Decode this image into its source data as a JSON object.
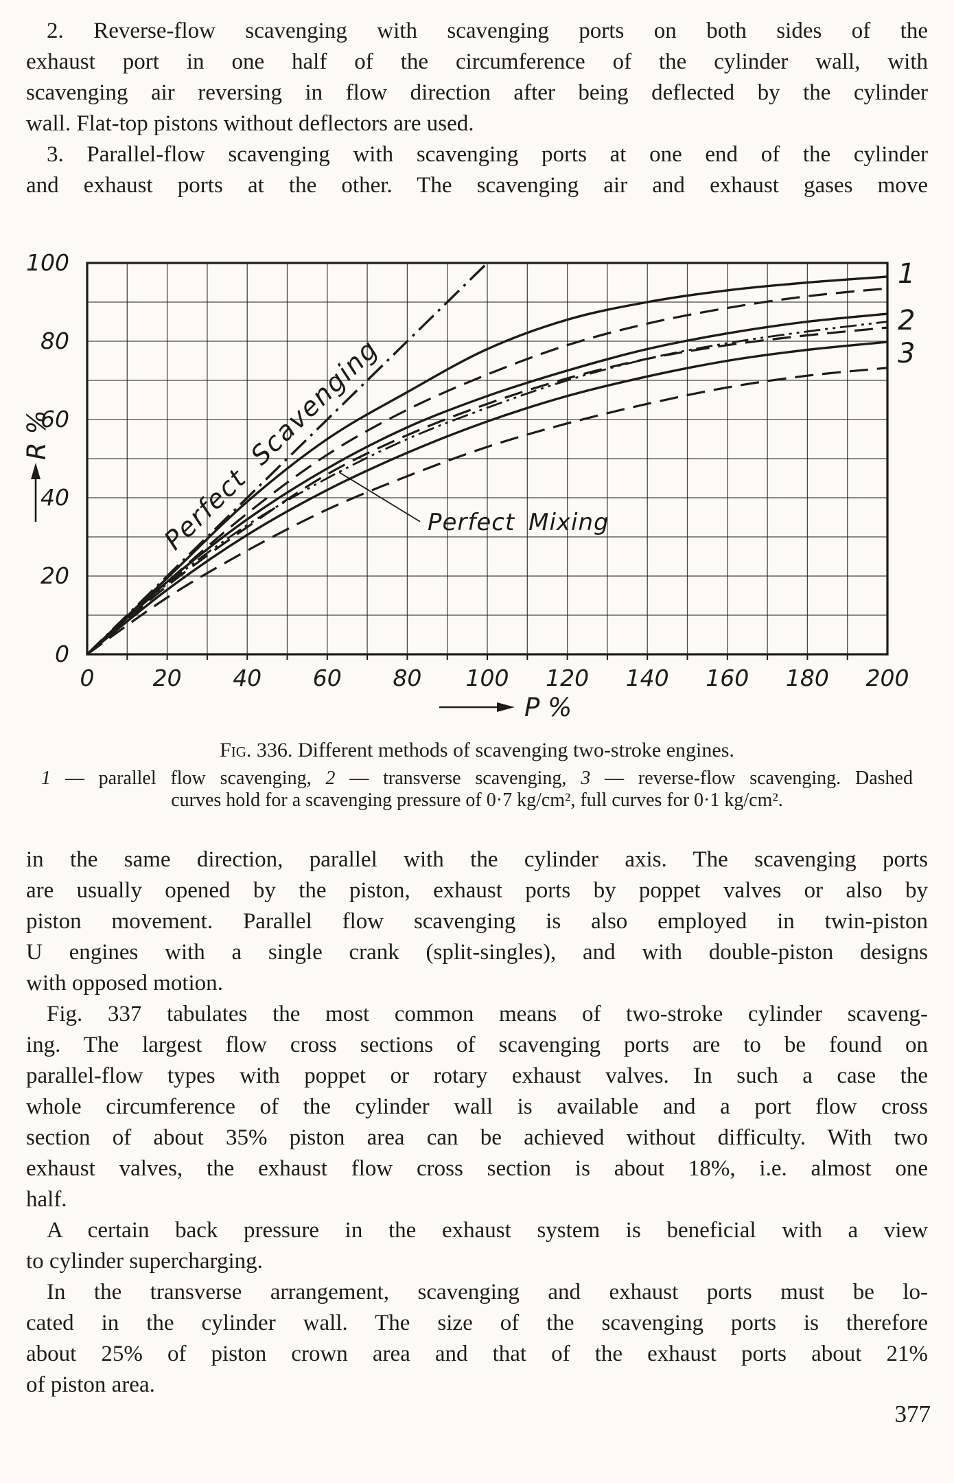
{
  "page": {
    "number": "377",
    "paper_color": "#fbfaf5",
    "ink_color": "#1f1b16"
  },
  "top_paragraphs": [
    {
      "indent": true,
      "lines": [
        "2. Reverse-flow scavenging with scavenging ports on both sides of the",
        "exhaust port in one half of the circumference of the cylinder wall, with",
        "scavenging air reversing in flow direction after being deflected by the cylinder",
        "wall. Flat-top pistons without deflectors are used."
      ],
      "justify_last": false
    },
    {
      "indent": true,
      "lines": [
        "3. Parallel-flow scavenging with scavenging ports at one end of the cylinder",
        "and exhaust ports at the other. The scavenging air and exhaust gases move"
      ],
      "justify_last": true
    }
  ],
  "caption": {
    "label": "Fig. 336.",
    "text": "Different methods of scavenging two-stroke engines."
  },
  "legend_lines": [
    [
      {
        "i": true,
        "t": "1"
      },
      {
        "t": " — parallel flow scavenging, "
      },
      {
        "i": true,
        "t": "2"
      },
      {
        "t": " — transverse scavenging, "
      },
      {
        "i": true,
        "t": "3"
      },
      {
        "t": " — reverse-flow scavenging. Dashed"
      }
    ],
    [
      {
        "t": "curves hold for a scavenging pressure of 0·7 kg/cm², full curves for 0·1 kg/cm²."
      }
    ]
  ],
  "bottom_paragraphs": [
    {
      "indent": false,
      "lines": [
        "in the same direction, parallel with the cylinder axis. The scavenging ports",
        "are usually opened by the piston, exhaust ports by poppet valves or also by",
        "piston movement. Parallel flow scavenging is also employed in twin-piston",
        "U engines with a single crank (split-singles), and with double-piston designs",
        "with opposed motion."
      ],
      "justify_last": false
    },
    {
      "indent": true,
      "lines": [
        "Fig. 337 tabulates the most common means of two-stroke cylinder scaveng-",
        "ing. The largest flow cross sections of scavenging ports are to be found on",
        "parallel-flow types with poppet or rotary exhaust valves. In such a case the",
        "whole circumference of the cylinder wall is available and a port flow cross",
        "section of about 35% piston area can be achieved without difficulty. With two",
        "exhaust valves, the exhaust flow cross section is about 18%, i.e. almost one",
        "half."
      ],
      "justify_last": false
    },
    {
      "indent": true,
      "lines": [
        "A certain back pressure in the exhaust system is beneficial with a view",
        "to cylinder supercharging."
      ],
      "justify_last": false
    },
    {
      "indent": true,
      "lines": [
        "In the transverse arrangement, scavenging and exhaust ports must be lo-",
        "cated in the cylinder wall. The size of the scavenging ports is therefore",
        "about 25% of piston crown area and that of the exhaust ports about 21%",
        "of piston area."
      ],
      "justify_last": false
    }
  ],
  "chart_data": {
    "type": "line",
    "title": "Different methods of scavenging two-stroke engines",
    "xlabel": "P %",
    "ylabel": "R %",
    "xlim": [
      0,
      200
    ],
    "ylim": [
      0,
      100
    ],
    "grid_step": 10,
    "x_ticks": [
      0,
      20,
      40,
      60,
      80,
      100,
      120,
      140,
      160,
      180,
      200
    ],
    "y_ticks": [
      0,
      20,
      40,
      60,
      80,
      100
    ],
    "series": [
      {
        "id": "perfect-scavenging",
        "name": "Perfect Scavenging",
        "style": "dashdot",
        "width": 3.4,
        "points": [
          [
            0,
            0
          ],
          [
            101,
            101
          ]
        ]
      },
      {
        "id": "perfect-mixing",
        "name": "Perfect Mixing",
        "style": "dashdotdot",
        "width": 2.8,
        "points": [
          [
            0,
            0
          ],
          [
            20,
            18
          ],
          [
            40,
            33
          ],
          [
            60,
            45
          ],
          [
            80,
            55
          ],
          [
            100,
            63
          ],
          [
            120,
            70
          ],
          [
            140,
            75.5
          ],
          [
            160,
            79.5
          ],
          [
            180,
            82.5
          ],
          [
            200,
            85
          ]
        ]
      },
      {
        "id": "curve-1-full",
        "name": "1 parallel flow scavenging, 0·1 kg/cm² (full)",
        "style": "solid",
        "width": 3.4,
        "points": [
          [
            0,
            0
          ],
          [
            20,
            19.5
          ],
          [
            40,
            39
          ],
          [
            60,
            55
          ],
          [
            80,
            67
          ],
          [
            100,
            78
          ],
          [
            120,
            85.5
          ],
          [
            140,
            90
          ],
          [
            160,
            93
          ],
          [
            180,
            95
          ],
          [
            200,
            96.5
          ]
        ]
      },
      {
        "id": "curve-1-dashed",
        "name": "1 parallel flow scavenging, 0·7 kg/cm² (dashed)",
        "style": "dashed",
        "width": 3.2,
        "points": [
          [
            0,
            0
          ],
          [
            20,
            18.5
          ],
          [
            40,
            36
          ],
          [
            60,
            51
          ],
          [
            80,
            62.5
          ],
          [
            100,
            71.5
          ],
          [
            120,
            79
          ],
          [
            140,
            84.5
          ],
          [
            160,
            88.5
          ],
          [
            180,
            91.5
          ],
          [
            200,
            93.5
          ]
        ]
      },
      {
        "id": "curve-2-full",
        "name": "2 transverse scavenging, 0·1 kg/cm² (full)",
        "style": "solid",
        "width": 3.4,
        "points": [
          [
            0,
            0
          ],
          [
            20,
            18.5
          ],
          [
            40,
            34.5
          ],
          [
            60,
            47.5
          ],
          [
            80,
            58
          ],
          [
            100,
            66
          ],
          [
            120,
            72.5
          ],
          [
            140,
            78
          ],
          [
            160,
            82
          ],
          [
            180,
            85
          ],
          [
            200,
            87
          ]
        ]
      },
      {
        "id": "curve-2-dashed",
        "name": "2 transverse scavenging, 0·7 kg/cm² (dashed)",
        "style": "dashed",
        "width": 3.2,
        "points": [
          [
            0,
            0
          ],
          [
            20,
            17.5
          ],
          [
            40,
            32.5
          ],
          [
            60,
            46
          ],
          [
            80,
            56
          ],
          [
            100,
            64
          ],
          [
            120,
            70.5
          ],
          [
            140,
            75.5
          ],
          [
            160,
            79
          ],
          [
            180,
            81.5
          ],
          [
            200,
            83.5
          ]
        ]
      },
      {
        "id": "curve-3-full",
        "name": "3 reverse-flow scavenging, 0·1 kg/cm² (full)",
        "style": "solid",
        "width": 3.4,
        "points": [
          [
            0,
            0
          ],
          [
            20,
            16.5
          ],
          [
            40,
            30.5
          ],
          [
            60,
            42
          ],
          [
            80,
            51.5
          ],
          [
            100,
            59.5
          ],
          [
            120,
            66
          ],
          [
            140,
            71
          ],
          [
            160,
            75
          ],
          [
            180,
            77.8
          ],
          [
            200,
            79.8
          ]
        ]
      },
      {
        "id": "curve-3-dashed",
        "name": "3 reverse-flow scavenging, 0·7 kg/cm² (dashed)",
        "style": "dashed",
        "width": 3.2,
        "points": [
          [
            0,
            0
          ],
          [
            20,
            14.5
          ],
          [
            40,
            26.5
          ],
          [
            60,
            37
          ],
          [
            80,
            45.5
          ],
          [
            100,
            53
          ],
          [
            120,
            59
          ],
          [
            140,
            64
          ],
          [
            160,
            68.2
          ],
          [
            180,
            71.2
          ],
          [
            200,
            73.2
          ]
        ]
      }
    ],
    "annotations": [
      {
        "id": "perfect-scavenging-label",
        "text": "Perfect Scavenging",
        "P": 22,
        "R": 26.3,
        "rotate": -44.4,
        "size": 38,
        "spacing": 2,
        "wordspacing": 14
      },
      {
        "id": "perfect-mixing-label",
        "text": "Perfect Mixing",
        "P": 85,
        "R": 31.8,
        "rotate": 0,
        "size": 34,
        "spacing": 1,
        "wordspacing": 8
      },
      {
        "id": "curve-1-label",
        "text": "1",
        "P": 202.5,
        "R": 95,
        "rotate": 0,
        "size": 40,
        "spacing": 0,
        "wordspacing": 0
      },
      {
        "id": "curve-2-label",
        "text": "2",
        "P": 202.5,
        "R": 83,
        "rotate": 0,
        "size": 40,
        "spacing": 0,
        "wordspacing": 0
      },
      {
        "id": "curve-3-label",
        "text": "3",
        "P": 202.5,
        "R": 74.5,
        "rotate": 0,
        "size": 40,
        "spacing": 0,
        "wordspacing": 0
      }
    ],
    "leader": {
      "id": "perfect-mixing-leader",
      "P1": 83.2,
      "R1": 33.9,
      "P2": 63,
      "R2": 46.5
    },
    "legend_position": "caption-below",
    "grid": true
  }
}
